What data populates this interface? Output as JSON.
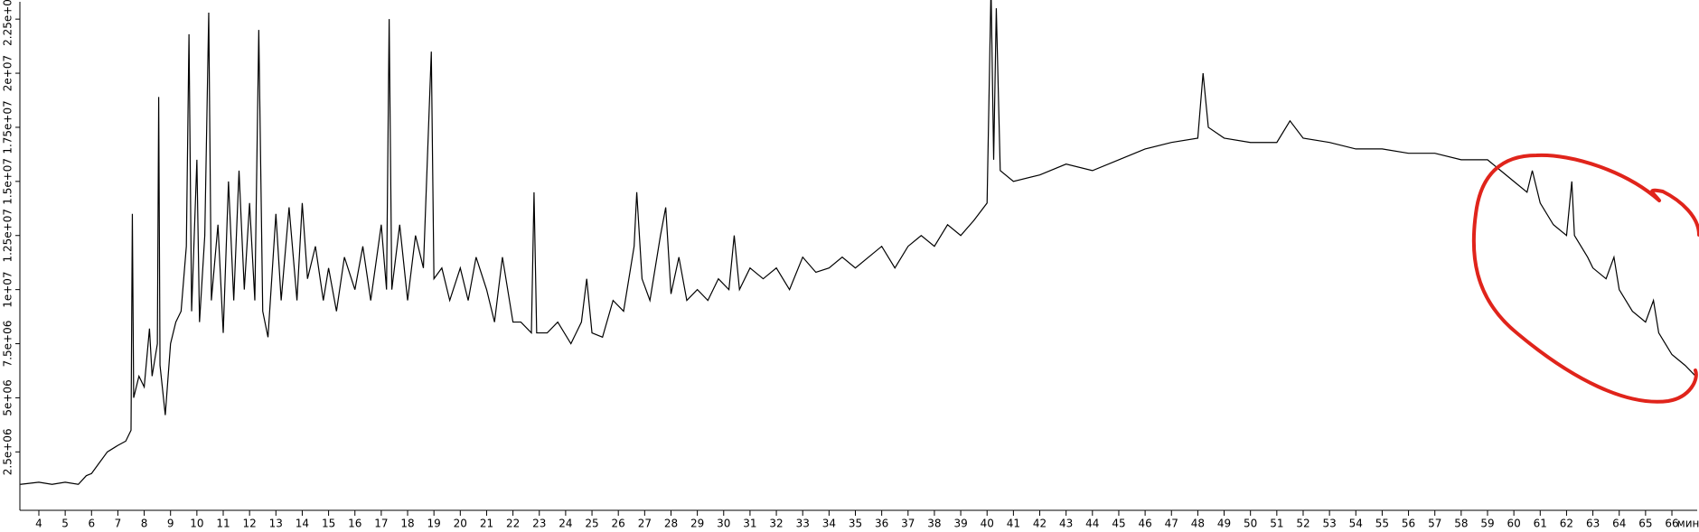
{
  "chart_data": {
    "type": "line",
    "x_label": "мин",
    "color": "#000000",
    "xlim": [
      3.28,
      66.96
    ],
    "ylim": [
      -200000.0,
      23300000.0
    ],
    "xticks": [
      4,
      5,
      6,
      7,
      8,
      9,
      10,
      11,
      12,
      13,
      14,
      15,
      16,
      17,
      18,
      19,
      20,
      21,
      22,
      23,
      24,
      25,
      26,
      27,
      28,
      29,
      30,
      31,
      32,
      33,
      34,
      35,
      36,
      37,
      38,
      39,
      40,
      41,
      42,
      43,
      44,
      45,
      46,
      47,
      48,
      49,
      50,
      51,
      52,
      53,
      54,
      55,
      56,
      57,
      58,
      59,
      60,
      61,
      62,
      63,
      64,
      65,
      66
    ],
    "yticks": [
      {
        "value": 2500000,
        "label": "2.5e+06"
      },
      {
        "value": 5000000,
        "label": "5e+06"
      },
      {
        "value": 7500000,
        "label": "7.5e+06"
      },
      {
        "value": 10000000,
        "label": "1e+07"
      },
      {
        "value": 12500000,
        "label": "1.25e+07"
      },
      {
        "value": 15000000,
        "label": "1.5e+07"
      },
      {
        "value": 17500000,
        "label": "1.75e+07"
      },
      {
        "value": 20000000,
        "label": "2e+07"
      },
      {
        "value": 22500000,
        "label": "2.25e+07"
      }
    ],
    "x": [
      3.3,
      4,
      4.5,
      5,
      5.5,
      5.8,
      6,
      6.3,
      6.6,
      7,
      7.3,
      7.5,
      7.55,
      7.6,
      7.8,
      8,
      8.2,
      8.3,
      8.5,
      8.55,
      8.6,
      8.8,
      9,
      9.2,
      9.4,
      9.6,
      9.7,
      9.8,
      10,
      10.1,
      10.3,
      10.45,
      10.55,
      10.8,
      11,
      11.2,
      11.4,
      11.6,
      11.8,
      12,
      12.2,
      12.35,
      12.5,
      12.7,
      13,
      13.2,
      13.5,
      13.8,
      14,
      14.2,
      14.5,
      14.8,
      15,
      15.3,
      15.6,
      16,
      16.3,
      16.6,
      17,
      17.2,
      17.3,
      17.4,
      17.7,
      18,
      18.3,
      18.6,
      18.9,
      19,
      19.3,
      19.6,
      20,
      20.3,
      20.6,
      21,
      21.3,
      21.6,
      22,
      22.3,
      22.7,
      22.8,
      22.9,
      23.3,
      23.7,
      24.2,
      24.6,
      24.8,
      25,
      25.4,
      25.8,
      26.2,
      26.6,
      26.7,
      26.9,
      27.2,
      27.6,
      27.8,
      28,
      28.3,
      28.6,
      29,
      29.4,
      29.8,
      30.2,
      30.4,
      30.6,
      31,
      31.5,
      32,
      32.5,
      33,
      33.5,
      34,
      34.5,
      35,
      35.5,
      36,
      36.5,
      37,
      37.5,
      38,
      38.5,
      39,
      39.5,
      40,
      40.15,
      40.25,
      40.35,
      40.5,
      41,
      42,
      43,
      44,
      45,
      46,
      47,
      48,
      48.2,
      48.4,
      49,
      50,
      51,
      51.5,
      52,
      53,
      54,
      55,
      56,
      57,
      58,
      59,
      59.5,
      60,
      60.5,
      60.7,
      61,
      61.5,
      62,
      62.2,
      62.3,
      62.8,
      63,
      63.5,
      63.8,
      64,
      64.5,
      65,
      65.3,
      65.5,
      66,
      66.5,
      66.9
    ],
    "values": [
      1000000.0,
      1100000.0,
      1000000.0,
      1100000.0,
      1000000.0,
      1400000.0,
      1500000.0,
      2000000.0,
      2500000.0,
      2800000.0,
      3000000.0,
      3500000.0,
      13500000.0,
      5000000.0,
      6000000.0,
      5500000.0,
      8200000.0,
      6000000.0,
      7500000.0,
      18900000.0,
      6500000.0,
      4200000.0,
      7500000.0,
      8500000.0,
      9000000.0,
      12000000.0,
      21800000.0,
      9000000.0,
      16000000.0,
      8500000.0,
      12500000.0,
      22800000.0,
      9500000.0,
      13000000.0,
      8000000.0,
      15000000.0,
      9500000.0,
      15500000.0,
      10000000.0,
      14000000.0,
      9500000.0,
      22000000.0,
      9000000.0,
      7800000.0,
      13500000.0,
      9500000.0,
      13800000.0,
      9500000.0,
      14000000.0,
      10500000.0,
      12000000.0,
      9500000.0,
      11000000.0,
      9000000.0,
      11500000.0,
      10000000.0,
      12000000.0,
      9500000.0,
      13000000.0,
      10000000.0,
      22500000.0,
      10000000.0,
      13000000.0,
      9500000.0,
      12500000.0,
      11000000.0,
      21000000.0,
      10500000.0,
      11000000.0,
      9500000.0,
      11000000.0,
      9500000.0,
      11500000.0,
      10000000.0,
      8500000.0,
      11500000.0,
      8500000.0,
      8500000.0,
      8000000.0,
      14500000.0,
      8000000.0,
      8000000.0,
      8500000.0,
      7500000.0,
      8500000.0,
      10500000.0,
      8000000.0,
      7800000.0,
      9500000.0,
      9000000.0,
      12000000.0,
      14500000.0,
      10500000.0,
      9500000.0,
      12500000.0,
      13800000.0,
      9800000.0,
      11500000.0,
      9500000.0,
      10000000.0,
      9500000.0,
      10500000.0,
      10000000.0,
      12500000.0,
      10000000.0,
      11000000.0,
      10500000.0,
      11000000.0,
      10000000.0,
      11500000.0,
      10800000.0,
      11000000.0,
      11500000.0,
      11000000.0,
      11500000.0,
      12000000.0,
      11000000.0,
      12000000.0,
      12500000.0,
      12000000.0,
      13000000.0,
      12500000.0,
      13200000.0,
      14000000.0,
      24000000.0,
      16000000.0,
      23000000.0,
      15500000.0,
      15000000.0,
      15300000.0,
      15800000.0,
      15500000.0,
      16000000.0,
      16500000.0,
      16800000.0,
      17000000.0,
      20000000.0,
      17500000.0,
      17000000.0,
      16800000.0,
      16800000.0,
      17800000.0,
      17000000.0,
      16800000.0,
      16500000.0,
      16500000.0,
      16300000.0,
      16300000.0,
      16000000.0,
      16000000.0,
      15500000.0,
      15000000.0,
      14500000.0,
      15500000.0,
      14000000.0,
      13000000.0,
      12500000.0,
      15000000.0,
      12500000.0,
      11500000.0,
      11000000.0,
      10500000.0,
      11500000.0,
      10000000.0,
      9000000.0,
      8500000.0,
      9500000.0,
      8000000.0,
      7000000.0,
      6500000.0,
      6000000.0
    ]
  }
}
